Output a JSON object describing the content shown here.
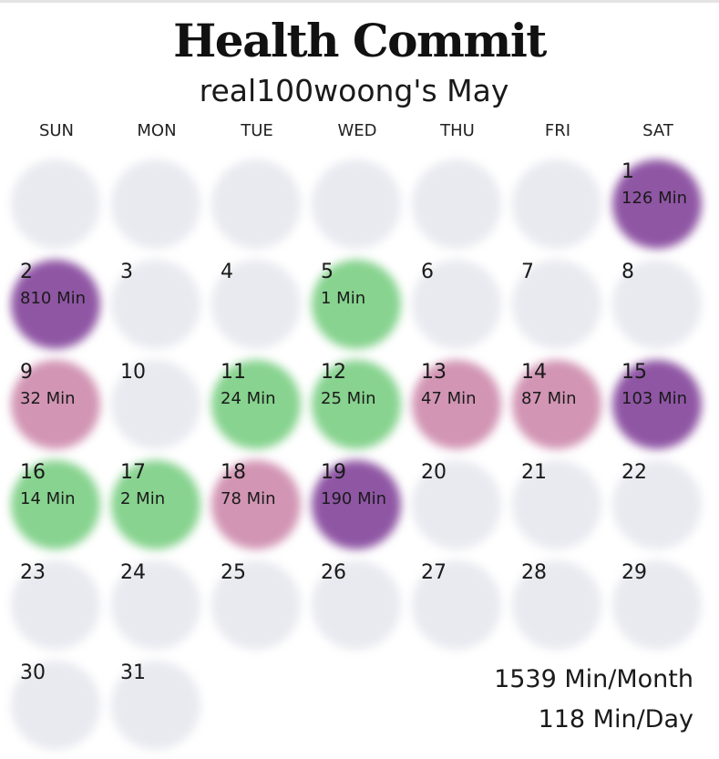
{
  "title": "Health Commit",
  "subtitle": "real100woong's May",
  "weekdays": [
    "SUN",
    "MON",
    "TUE",
    "WED",
    "THU",
    "FRI",
    "SAT"
  ],
  "colors": {
    "none": "#e9eaf0",
    "low": "#87d38f",
    "mid": "#d295b4",
    "high": "#8f56a4"
  },
  "leading_blank_days": 6,
  "days": [
    {
      "day": "1",
      "minutes": "126 Min",
      "level": "purple"
    },
    {
      "day": "2",
      "minutes": "810 Min",
      "level": "purple"
    },
    {
      "day": "3",
      "minutes": "",
      "level": "none"
    },
    {
      "day": "4",
      "minutes": "",
      "level": "none"
    },
    {
      "day": "5",
      "minutes": "1 Min",
      "level": "green"
    },
    {
      "day": "6",
      "minutes": "",
      "level": "none"
    },
    {
      "day": "7",
      "minutes": "",
      "level": "none"
    },
    {
      "day": "8",
      "minutes": "",
      "level": "none"
    },
    {
      "day": "9",
      "minutes": "32 Min",
      "level": "pink"
    },
    {
      "day": "10",
      "minutes": "",
      "level": "none"
    },
    {
      "day": "11",
      "minutes": "24 Min",
      "level": "green"
    },
    {
      "day": "12",
      "minutes": "25 Min",
      "level": "green"
    },
    {
      "day": "13",
      "minutes": "47 Min",
      "level": "pink"
    },
    {
      "day": "14",
      "minutes": "87 Min",
      "level": "pink"
    },
    {
      "day": "15",
      "minutes": "103 Min",
      "level": "purple"
    },
    {
      "day": "16",
      "minutes": "14 Min",
      "level": "green"
    },
    {
      "day": "17",
      "minutes": "2 Min",
      "level": "green"
    },
    {
      "day": "18",
      "minutes": "78 Min",
      "level": "pink"
    },
    {
      "day": "19",
      "minutes": "190 Min",
      "level": "purple"
    },
    {
      "day": "20",
      "minutes": "",
      "level": "none"
    },
    {
      "day": "21",
      "minutes": "",
      "level": "none"
    },
    {
      "day": "22",
      "minutes": "",
      "level": "none"
    },
    {
      "day": "23",
      "minutes": "",
      "level": "none"
    },
    {
      "day": "24",
      "minutes": "",
      "level": "none"
    },
    {
      "day": "25",
      "minutes": "",
      "level": "none"
    },
    {
      "day": "26",
      "minutes": "",
      "level": "none"
    },
    {
      "day": "27",
      "minutes": "",
      "level": "none"
    },
    {
      "day": "28",
      "minutes": "",
      "level": "none"
    },
    {
      "day": "29",
      "minutes": "",
      "level": "none"
    },
    {
      "day": "30",
      "minutes": "",
      "level": "none"
    },
    {
      "day": "31",
      "minutes": "",
      "level": "none"
    }
  ],
  "summary": {
    "per_month": "1539 Min/Month",
    "per_day": "118 Min/Day"
  }
}
